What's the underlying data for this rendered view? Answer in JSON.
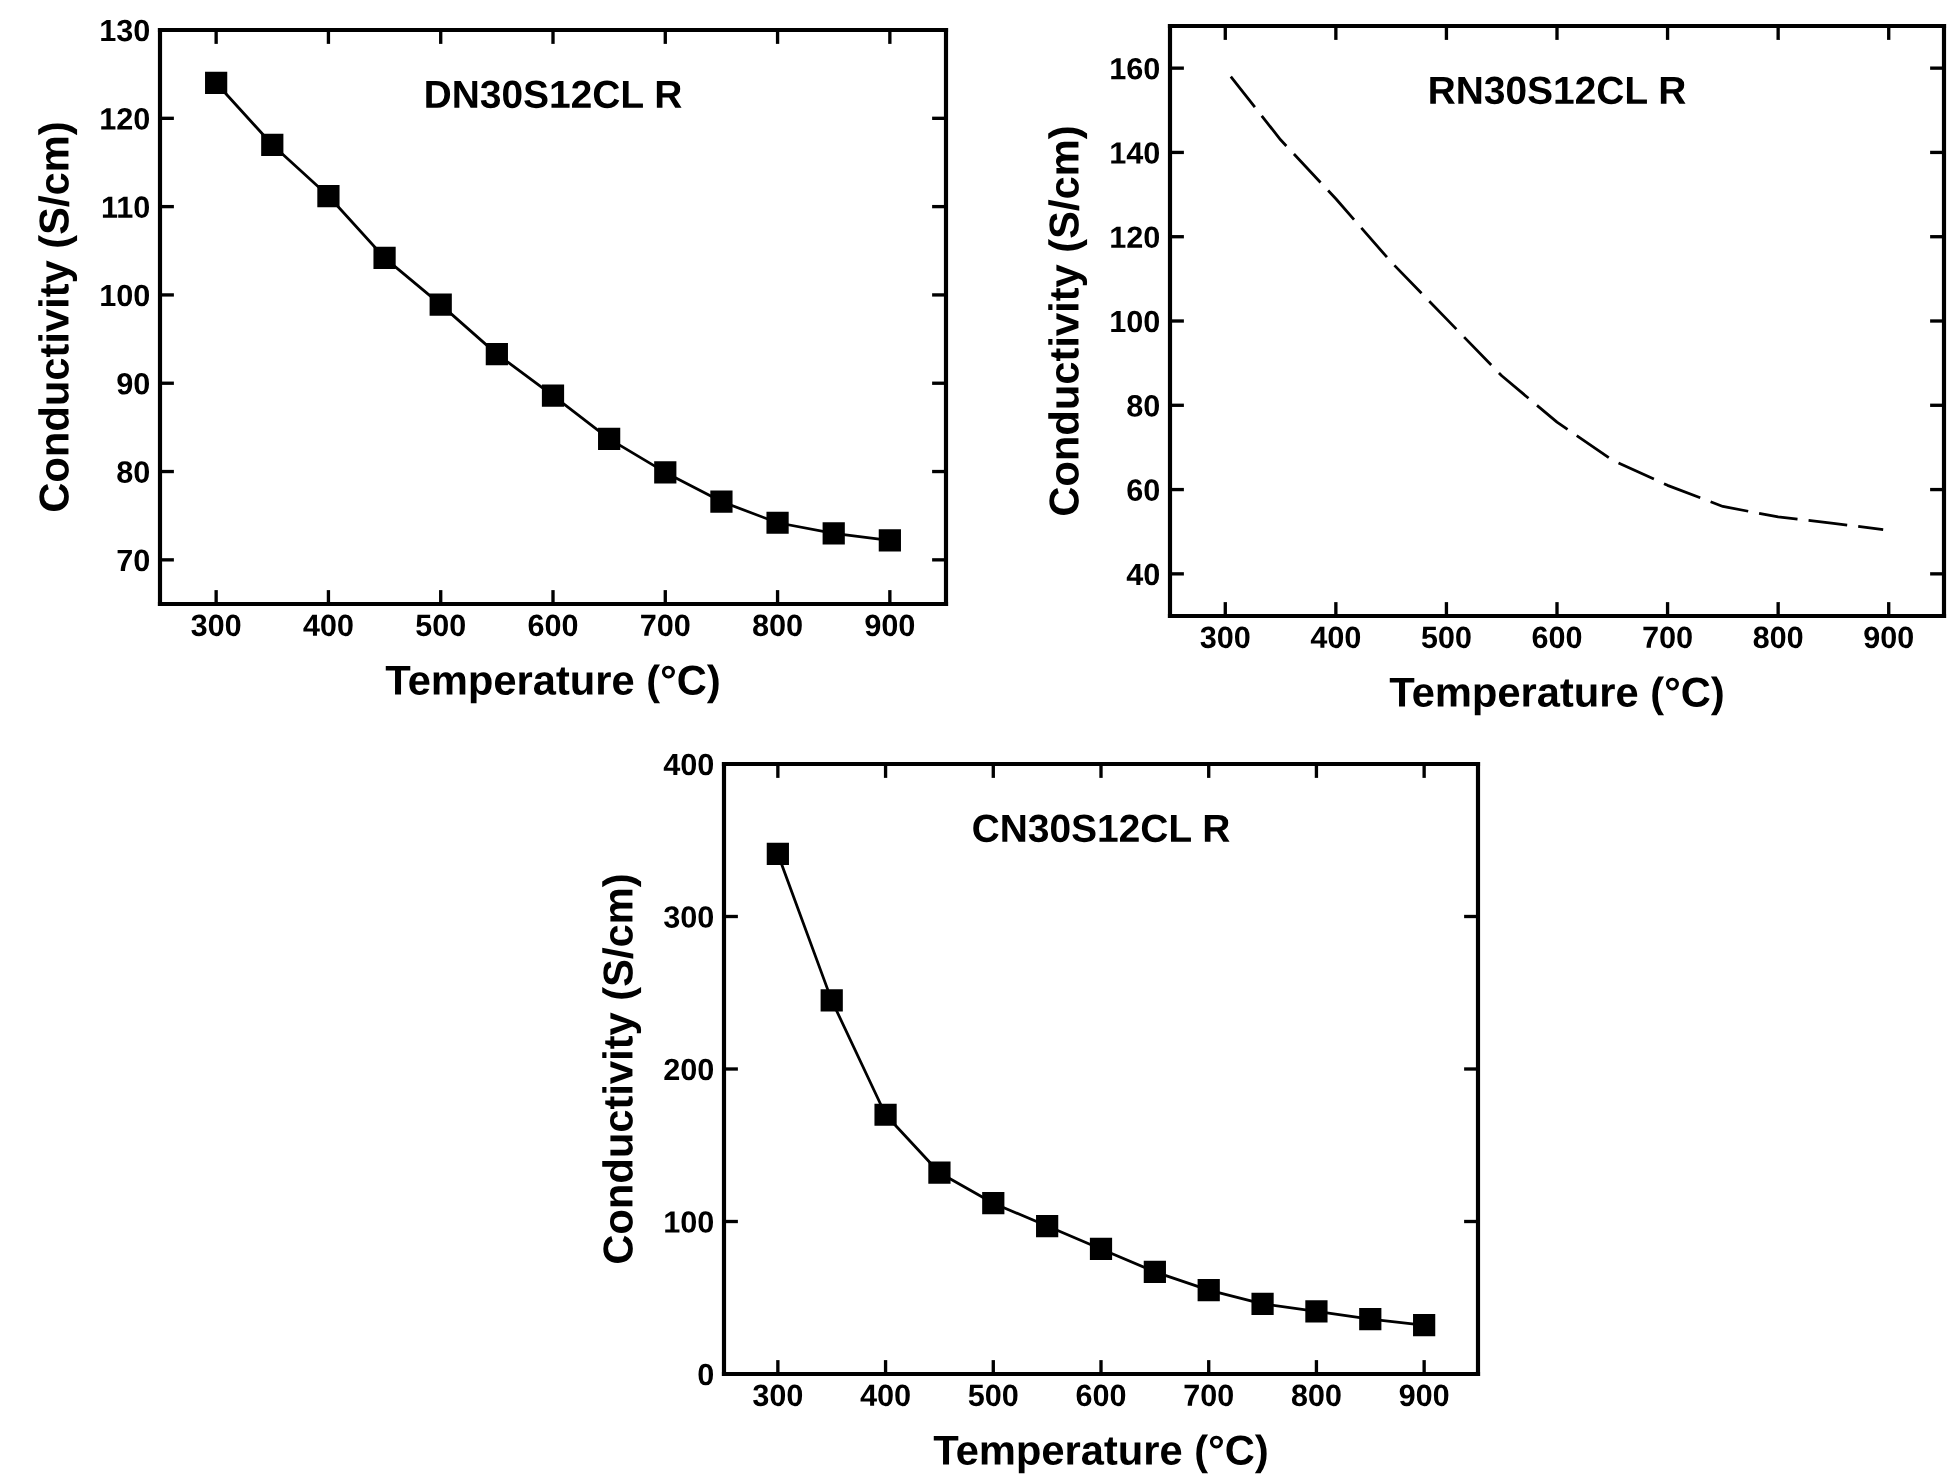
{
  "chart_data": [
    {
      "type": "line",
      "title": "DN30S12CL R",
      "xlabel": "Temperature (°C)",
      "ylabel": "Conductivity (S/cm)",
      "marker": "square",
      "line_style": "solid",
      "x": [
        300,
        350,
        400,
        450,
        500,
        550,
        600,
        650,
        700,
        750,
        800,
        850,
        900
      ],
      "series": [
        {
          "color": "#000000",
          "values": [
            124,
            117,
            111.2,
            104.2,
            98.9,
            93.3,
            88.6,
            83.7,
            79.9,
            76.6,
            74.2,
            73,
            72.2
          ]
        }
      ],
      "xlim": [
        250,
        950
      ],
      "ylim": [
        65,
        130
      ],
      "xticks": [
        300,
        400,
        500,
        600,
        700,
        800,
        900
      ],
      "yticks": [
        70,
        80,
        90,
        100,
        110,
        120,
        130
      ]
    },
    {
      "type": "line",
      "title": "RN30S12CL R",
      "xlabel": "Temperature (°C)",
      "ylabel": "Conductivity (S/cm)",
      "marker": "none",
      "line_style": "dashed",
      "x": [
        305,
        350,
        400,
        450,
        500,
        550,
        600,
        650,
        700,
        750,
        800,
        850,
        895
      ],
      "series": [
        {
          "color": "#000000",
          "values": [
            158,
            143,
            129,
            114,
            100.5,
            87,
            76,
            67,
            61,
            56,
            53.5,
            52,
            50.5
          ]
        }
      ],
      "xlim": [
        250,
        950
      ],
      "ylim": [
        30,
        170
      ],
      "xticks": [
        300,
        400,
        500,
        600,
        700,
        800,
        900
      ],
      "yticks": [
        40,
        60,
        80,
        100,
        120,
        140,
        160
      ]
    },
    {
      "type": "line",
      "title": "CN30S12CL R",
      "xlabel": "Temperature (°C)",
      "ylabel": "Conductivity (S/cm)",
      "marker": "square",
      "line_style": "solid",
      "x": [
        300,
        350,
        400,
        450,
        500,
        550,
        600,
        650,
        700,
        750,
        800,
        850,
        900
      ],
      "series": [
        {
          "color": "#000000",
          "values": [
            341,
            245,
            170,
            132,
            112,
            97,
            82,
            67,
            55,
            46,
            41,
            36,
            32
          ]
        }
      ],
      "xlim": [
        250,
        950
      ],
      "ylim": [
        0,
        400
      ],
      "xticks": [
        300,
        400,
        500,
        600,
        700,
        800,
        900
      ],
      "yticks": [
        0,
        100,
        200,
        300,
        400
      ]
    }
  ]
}
